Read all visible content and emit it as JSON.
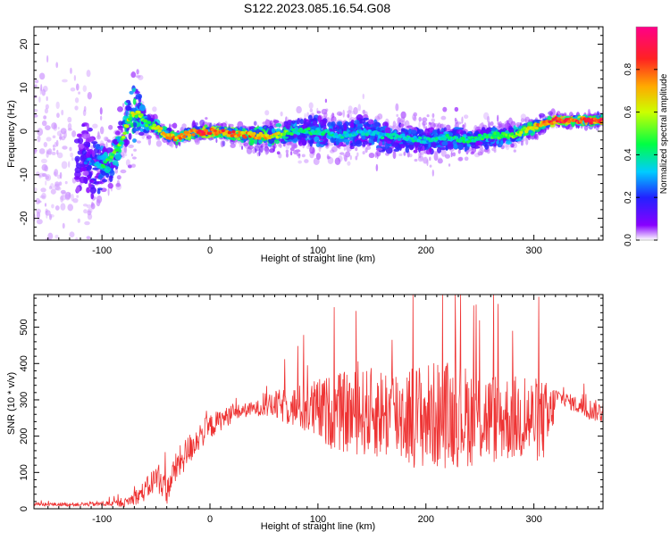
{
  "title": "S122.2023.085.16.54.G08",
  "colors": {
    "trace": "#ee3333",
    "frame": "#000000",
    "colormap": [
      "#ffffff",
      "#8800ff",
      "#2222ff",
      "#00ccff",
      "#00ff44",
      "#ccff00",
      "#ffaa00",
      "#ff2222",
      "#ff0088"
    ]
  },
  "chart_data": [
    {
      "type": "heatmap",
      "title": "S122.2023.085.16.54.G08",
      "xlabel": "Height of straight line (km)",
      "ylabel": "Frequency (Hz)",
      "xlim": [
        -163,
        364
      ],
      "ylim": [
        -25,
        24
      ],
      "xticks": [
        -100,
        0,
        100,
        200,
        300
      ],
      "yticks": [
        -20,
        -10,
        0,
        10,
        20
      ],
      "colorbar": {
        "label": "Normalized spectral amplitude",
        "range": [
          0,
          1
        ],
        "ticks": [
          "0.0",
          "0.2",
          "0.4",
          "0.6",
          "0.8"
        ]
      },
      "ridge": {
        "x": [
          -163,
          -130,
          -110,
          -100,
          -90,
          -80,
          -75,
          -70,
          -65,
          -60,
          -50,
          -40,
          -30,
          -20,
          0,
          20,
          40,
          60,
          80,
          100,
          120,
          140,
          160,
          180,
          200,
          220,
          240,
          260,
          280,
          300,
          320,
          340,
          364
        ],
        "freq": [
          -5,
          -6,
          -7,
          -8,
          -6,
          -1,
          3,
          4,
          4,
          2,
          1,
          -1,
          -1.5,
          -0.5,
          0,
          -0.5,
          -1,
          -1,
          0,
          0,
          -1,
          0,
          -1,
          -1.5,
          -2,
          -1.5,
          -2,
          -1,
          -1,
          1,
          2.5,
          2.5,
          2.5
        ],
        "amplitude": [
          0.15,
          0.2,
          0.3,
          0.45,
          0.5,
          0.55,
          0.6,
          0.6,
          0.55,
          0.5,
          0.6,
          0.7,
          0.75,
          0.8,
          0.85,
          0.8,
          0.75,
          0.65,
          0.45,
          0.45,
          0.4,
          0.4,
          0.4,
          0.4,
          0.4,
          0.45,
          0.45,
          0.5,
          0.55,
          0.7,
          0.85,
          0.9,
          0.9
        ],
        "spread_hz": [
          20,
          20,
          14,
          10,
          8,
          8,
          10,
          12,
          8,
          4,
          3,
          2.5,
          2,
          2,
          2,
          2,
          3,
          4,
          5,
          6,
          6,
          6,
          6,
          5,
          5,
          5,
          4,
          4,
          3,
          2,
          1.5,
          1.5,
          1.5
        ]
      }
    },
    {
      "type": "line",
      "xlabel": "Height of straight line (km)",
      "ylabel": "SNR (10 * v/v)",
      "xlim": [
        -163,
        364
      ],
      "ylim": [
        0,
        590
      ],
      "xticks": [
        -100,
        0,
        100,
        200,
        300
      ],
      "yticks": [
        0,
        100,
        200,
        300,
        400,
        500
      ],
      "series": [
        {
          "x": [
            -163,
            -120,
            -80,
            -70,
            -60,
            -50,
            -45,
            -40,
            -35,
            -30,
            -20,
            -10,
            0,
            10,
            20,
            30,
            40,
            50,
            60,
            80,
            100,
            120,
            140,
            160,
            180,
            200,
            220,
            240,
            260,
            280,
            300,
            315,
            320,
            330,
            340,
            350,
            364
          ],
          "values": [
            12,
            12,
            15,
            30,
            50,
            85,
            75,
            45,
            90,
            120,
            160,
            200,
            225,
            245,
            260,
            270,
            275,
            280,
            285,
            280,
            270,
            265,
            265,
            265,
            260,
            255,
            260,
            255,
            250,
            250,
            245,
            240,
            310,
            300,
            285,
            275,
            265
          ],
          "spread": [
            5,
            5,
            10,
            20,
            30,
            40,
            40,
            35,
            40,
            45,
            45,
            40,
            35,
            30,
            25,
            20,
            20,
            25,
            40,
            60,
            90,
            110,
            120,
            130,
            140,
            150,
            150,
            140,
            130,
            120,
            120,
            110,
            25,
            20,
            25,
            30,
            30
          ]
        }
      ]
    }
  ]
}
